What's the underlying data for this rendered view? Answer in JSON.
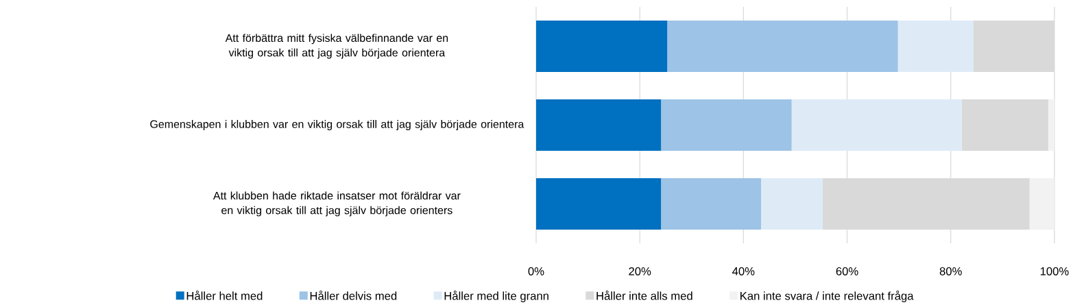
{
  "chart_data": {
    "type": "bar",
    "orientation": "horizontal",
    "stacked": true,
    "categories": [
      "Att förbättra mitt fysiska välbefinnande var en viktig orsak till att jag själv började orientera",
      "Gemenskapen i klubben var en viktig orsak till att jag själv började orientera",
      "Att klubben hade riktade insatser mot föräldrar var en viktig orsak till att jag själv började orienters"
    ],
    "series": [
      {
        "name": "Håller helt med",
        "color": "#0070c0",
        "values": [
          25.3,
          24.1,
          24.1
        ]
      },
      {
        "name": "Håller delvis med",
        "color": "#9dc3e6",
        "values": [
          44.5,
          25.2,
          19.3
        ]
      },
      {
        "name": "Håller med lite grann",
        "color": "#deebf7",
        "values": [
          14.6,
          32.8,
          11.9
        ]
      },
      {
        "name": "Håller inte alls med",
        "color": "#d9d9d9",
        "values": [
          15.6,
          16.7,
          39.9
        ]
      },
      {
        "name": "Kan inte svara / inte relevant fråga",
        "color": "#f2f2f2",
        "values": [
          0,
          1.2,
          4.8
        ]
      }
    ],
    "xlim": [
      0,
      100
    ],
    "xticks": [
      {
        "value": 0,
        "label": "0%"
      },
      {
        "value": 20,
        "label": "20%"
      },
      {
        "value": 40,
        "label": "40%"
      },
      {
        "value": 60,
        "label": "60%"
      },
      {
        "value": 80,
        "label": "80%"
      },
      {
        "value": 100,
        "label": "100%"
      }
    ],
    "grid": "x",
    "legend": "bottom"
  }
}
